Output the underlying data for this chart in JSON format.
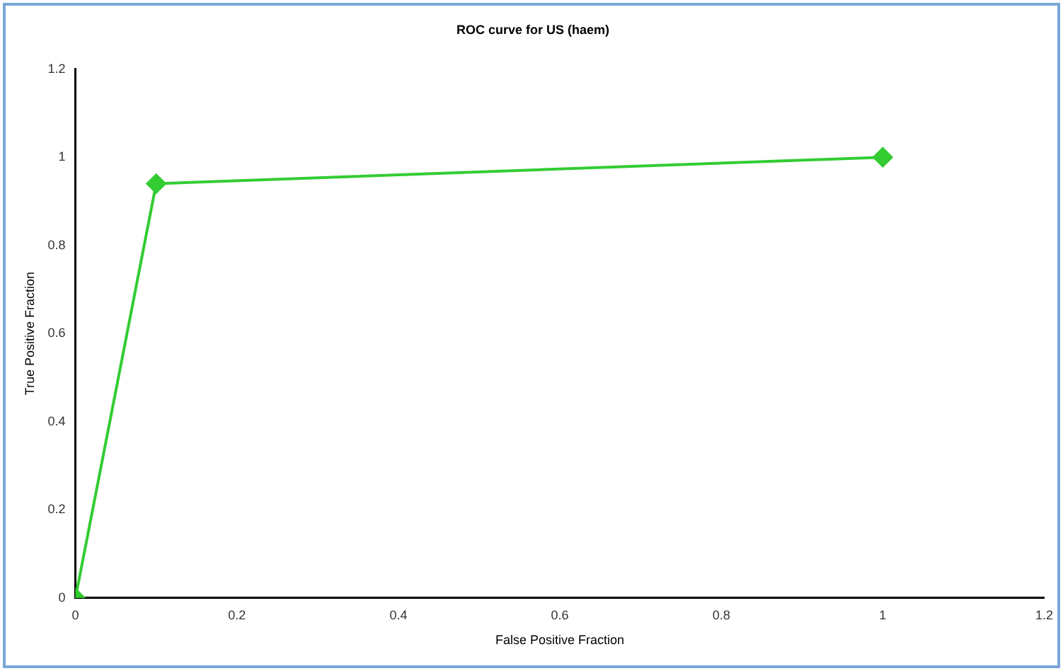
{
  "chart_data": {
    "type": "line",
    "title": "ROC curve for US (haem)",
    "xlabel": "False Positive Fraction",
    "ylabel": "True Positive Fraction",
    "x": [
      0,
      0.1,
      1
    ],
    "series": [
      {
        "color": "#33cc33",
        "values": [
          0,
          0.94,
          1
        ]
      }
    ],
    "xlim": [
      0,
      1.2
    ],
    "xticks": [
      0,
      0.2,
      0.4,
      0.6,
      0.8,
      1,
      1.2
    ],
    "ylim": [
      0,
      1.2
    ],
    "yticks": [
      0,
      0.2,
      0.4,
      0.6,
      0.8,
      1,
      1.2
    ],
    "grid": false,
    "legend": false,
    "marker": "diamond",
    "line_style": "solid"
  }
}
